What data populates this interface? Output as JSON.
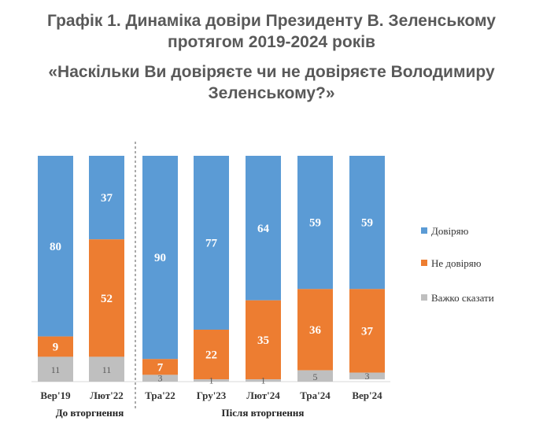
{
  "chart_data": {
    "type": "bar",
    "stacked": true,
    "title_line1": "Графік 1. Динаміка довіри Президенту В. Зеленському",
    "title_line2": "протягом 2019-2024 років",
    "subtitle_line1": "«Наскільки Ви довіряєте чи не довіряєте Володимиру",
    "subtitle_line2": "Зеленському?»",
    "categories": [
      "Вер'19",
      "Лют'22",
      "Тра'22",
      "Гру'23",
      "Лют'24",
      "Тра'24",
      "Вер'24"
    ],
    "series": [
      {
        "name": "Довіряю",
        "color": "#5B9BD5",
        "values": [
          80,
          37,
          90,
          77,
          64,
          59,
          59
        ]
      },
      {
        "name": "Не довіряю",
        "color": "#ED7D31",
        "values": [
          9,
          52,
          7,
          22,
          35,
          36,
          37
        ]
      },
      {
        "name": "Важко сказати",
        "color": "#BFBFBF",
        "values": [
          11,
          11,
          3,
          1,
          1,
          5,
          3
        ]
      }
    ],
    "groups": [
      {
        "label": "До вторгнення",
        "categories": [
          "Вер'19",
          "Лют'22"
        ]
      },
      {
        "label": "Після вторгнення",
        "categories": [
          "Тра'22",
          "Гру'23",
          "Лют'24",
          "Тра'24",
          "Вер'24"
        ]
      }
    ],
    "ylim": [
      0,
      100
    ],
    "xlabel": "",
    "ylabel": "",
    "legend_position": "right"
  }
}
